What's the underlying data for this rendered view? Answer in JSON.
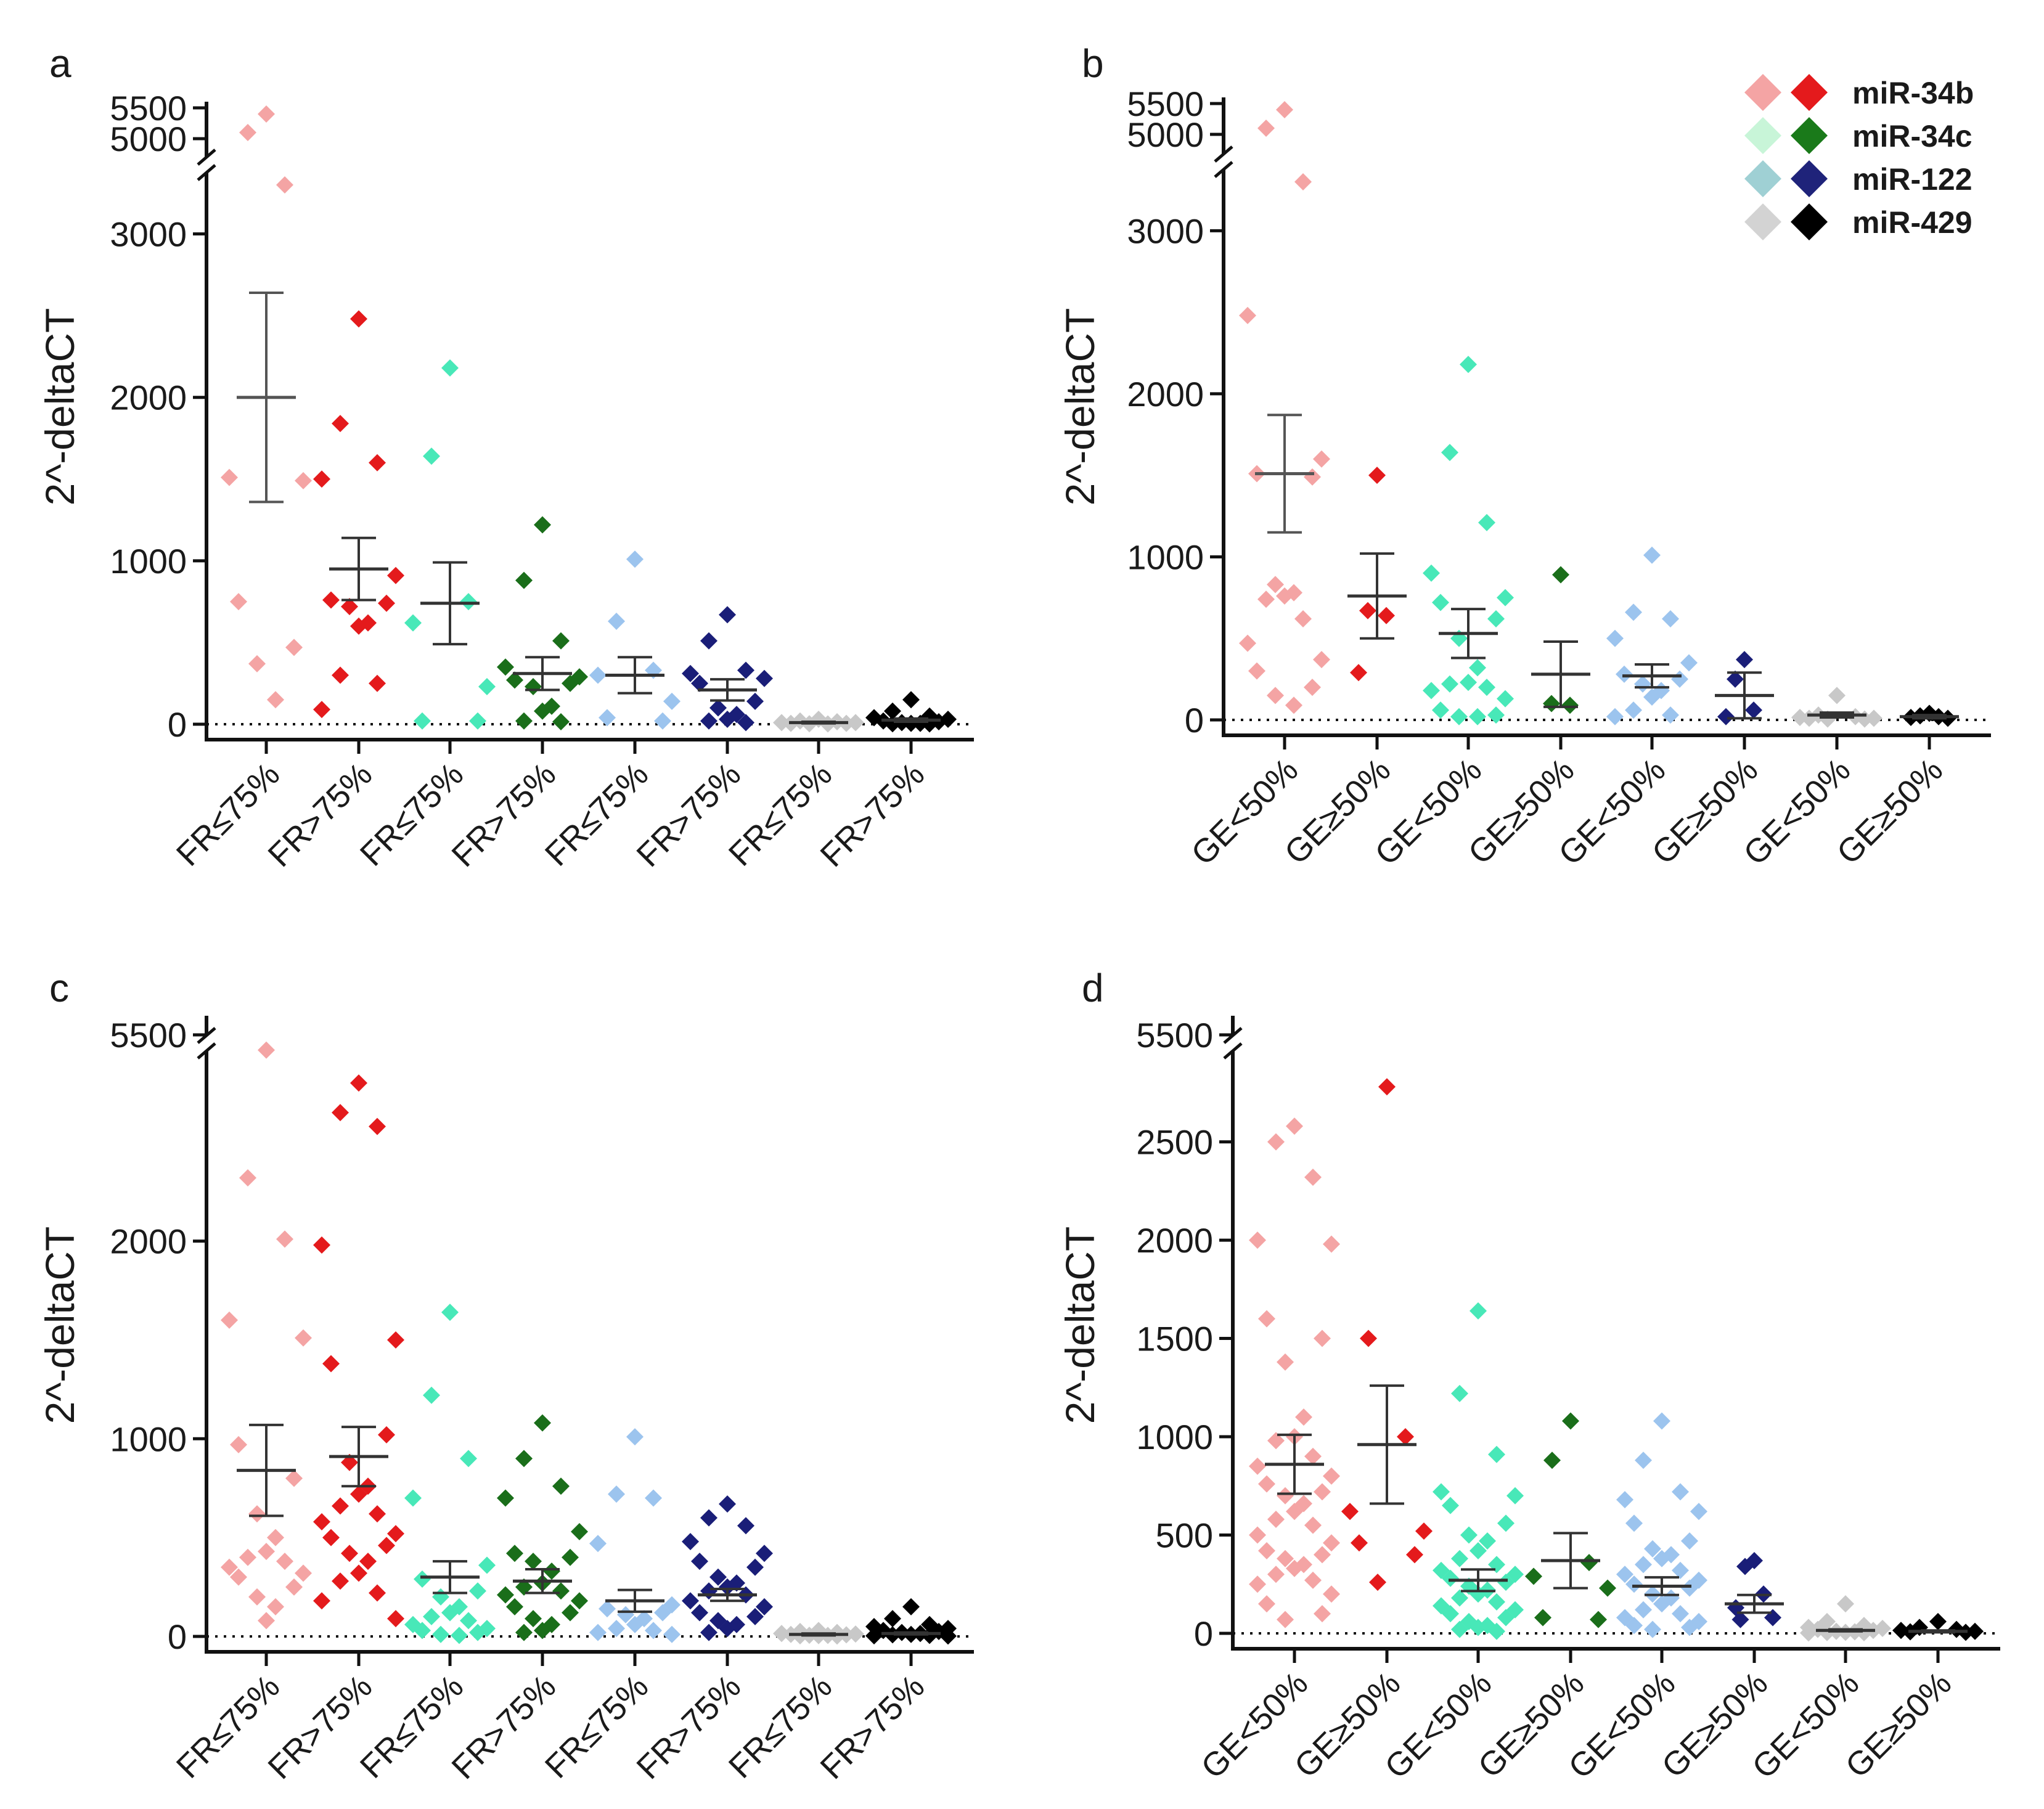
{
  "legend": [
    {
      "label": "miR-34b",
      "light": "#f4a4a4",
      "dark": "#e41a1c",
      "text_color": "#b22222"
    },
    {
      "label": "miR-34c",
      "light": "#c8f5d8",
      "dark": "#1a7a1a",
      "text_color": "#2e8b2e"
    },
    {
      "label": "miR-122",
      "light": "#9fd0d4",
      "dark": "#1f237a",
      "text_color": "#1f78b4"
    },
    {
      "label": "miR-429",
      "light": "#d3d3d3",
      "dark": "#000000",
      "text_color": "#707070"
    }
  ],
  "group_colors": [
    "#f4a4a4",
    "#e41a1c",
    "#48e8b8",
    "#1a6e1a",
    "#9cc4ee",
    "#1a1e78",
    "#c8c8c8",
    "#000000"
  ],
  "chart_data": [
    {
      "panel_label": "a",
      "type": "scatter",
      "ylabel": "2^-deltaCT",
      "categories": [
        "FR≤75%",
        "FR>75%",
        "FR≤75%",
        "FR>75%",
        "FR≤75%",
        "FR>75%",
        "FR≤75%",
        "FR>75%"
      ],
      "y_segments": [
        [
          0,
          3300
        ],
        [
          4800,
          5600
        ]
      ],
      "yticks": [
        0,
        1000,
        2000,
        3000,
        5000,
        5500
      ],
      "ytick_labels": [
        "0",
        "1000",
        "2000",
        "3000",
        "5000",
        "5500"
      ],
      "means": [
        2000,
        950,
        740,
        310,
        300,
        210,
        10,
        25
      ],
      "sems": [
        640,
        190,
        250,
        100,
        110,
        65,
        5,
        10
      ],
      "points": [
        [
          5400,
          5100,
          3300,
          1510,
          1490,
          750,
          470,
          370,
          150
        ],
        [
          2480,
          1840,
          1600,
          1500,
          910,
          760,
          740,
          720,
          620,
          600,
          300,
          250,
          90
        ],
        [
          2180,
          1640,
          750,
          620,
          230,
          20,
          20
        ],
        [
          1220,
          880,
          510,
          350,
          290,
          270,
          250,
          230,
          110,
          80,
          20,
          15
        ],
        [
          1010,
          630,
          330,
          300,
          140,
          40,
          20
        ],
        [
          670,
          510,
          330,
          310,
          280,
          250,
          140,
          100,
          60,
          30,
          20,
          10
        ],
        [
          30,
          20,
          15,
          10,
          10,
          5,
          5,
          3,
          2
        ],
        [
          150,
          80,
          50,
          40,
          30,
          20,
          15,
          10,
          5,
          5,
          3,
          2
        ]
      ]
    },
    {
      "panel_label": "b",
      "type": "scatter",
      "ylabel": "2^-deltaCT",
      "categories": [
        "GE<50%",
        "GE≥50%",
        "GE<50%",
        "GE≥50%",
        "GE<50%",
        "GE≥50%",
        "GE<50%",
        "GE≥50%"
      ],
      "y_segments": [
        [
          0,
          3300
        ],
        [
          4800,
          5600
        ]
      ],
      "yticks": [
        0,
        1000,
        2000,
        3000,
        5000,
        5500
      ],
      "ytick_labels": [
        "0",
        "1000",
        "2000",
        "3000",
        "5000",
        "5500"
      ],
      "means": [
        1510,
        760,
        530,
        280,
        270,
        150,
        30,
        20
      ],
      "sems": [
        360,
        260,
        150,
        200,
        70,
        140,
        15,
        10
      ],
      "points": [
        [
          5400,
          5100,
          3300,
          2480,
          1600,
          1510,
          1490,
          830,
          780,
          760,
          740,
          620,
          470,
          370,
          300,
          200,
          150,
          90
        ],
        [
          1500,
          670,
          640,
          290
        ],
        [
          2180,
          1640,
          1210,
          900,
          750,
          720,
          620,
          500,
          320,
          230,
          220,
          200,
          180,
          130,
          60,
          30,
          20,
          20
        ],
        [
          890,
          100,
          90
        ],
        [
          1010,
          660,
          620,
          500,
          350,
          280,
          250,
          220,
          180,
          140,
          60,
          30,
          20
        ],
        [
          370,
          250,
          60,
          20
        ],
        [
          150,
          30,
          20,
          15,
          10,
          10,
          5,
          5
        ],
        [
          40,
          25,
          20,
          15,
          10
        ]
      ]
    },
    {
      "panel_label": "c",
      "type": "scatter",
      "ylabel": "2^-deltaCT",
      "categories": [
        "FR≤75%",
        "FR>75%",
        "FR≤75%",
        "FR>75%",
        "FR≤75%",
        "FR>75%",
        "FR≤75%",
        "FR>75%"
      ],
      "y_segments": [
        [
          0,
          2900
        ],
        [
          5400,
          5600
        ]
      ],
      "yticks": [
        0,
        1000,
        2000,
        5500
      ],
      "ytick_labels": [
        "0",
        "1000",
        "2000",
        "5500"
      ],
      "means": [
        840,
        910,
        300,
        280,
        180,
        210,
        10,
        15
      ],
      "sems": [
        230,
        150,
        80,
        60,
        55,
        30,
        5,
        5
      ],
      "points": [
        [
          5420,
          2320,
          2010,
          1600,
          1510,
          970,
          800,
          620,
          500,
          430,
          400,
          380,
          350,
          320,
          300,
          250,
          200,
          150,
          80
        ],
        [
          2800,
          2650,
          2580,
          1980,
          1500,
          1380,
          1020,
          880,
          760,
          720,
          660,
          620,
          580,
          520,
          500,
          460,
          420,
          380,
          320,
          280,
          220,
          180,
          90
        ],
        [
          1640,
          1220,
          900,
          700,
          360,
          290,
          230,
          200,
          150,
          120,
          100,
          80,
          60,
          40,
          30,
          20,
          10,
          5
        ],
        [
          1080,
          900,
          760,
          700,
          530,
          420,
          400,
          380,
          330,
          270,
          250,
          230,
          210,
          180,
          150,
          120,
          90,
          60,
          30,
          20
        ],
        [
          1010,
          720,
          700,
          470,
          160,
          140,
          120,
          110,
          90,
          60,
          40,
          30,
          20,
          10
        ],
        [
          670,
          600,
          560,
          480,
          420,
          380,
          350,
          300,
          270,
          250,
          230,
          210,
          180,
          150,
          120,
          100,
          80,
          60,
          40,
          20
        ],
        [
          30,
          25,
          20,
          15,
          12,
          10,
          8,
          6,
          5,
          4,
          3,
          2
        ],
        [
          150,
          90,
          60,
          50,
          40,
          30,
          25,
          20,
          15,
          10,
          8,
          5,
          3,
          2
        ]
      ]
    },
    {
      "panel_label": "d",
      "type": "scatter",
      "ylabel": "2^-deltaCT",
      "categories": [
        "GE<50%",
        "GE≥50%",
        "GE<50%",
        "GE≥50%",
        "GE<50%",
        "GE≥50%",
        "GE<50%",
        "GE≥50%"
      ],
      "y_segments": [
        [
          0,
          2900
        ],
        [
          5400,
          5600
        ]
      ],
      "yticks": [
        0,
        500,
        1000,
        1500,
        2000,
        2500,
        5500
      ],
      "ytick_labels": [
        "0",
        "500",
        "1000",
        "1500",
        "2000",
        "2500",
        "5500"
      ],
      "means": [
        860,
        960,
        270,
        370,
        240,
        150,
        15,
        10
      ],
      "sems": [
        150,
        300,
        55,
        140,
        45,
        45,
        5,
        5
      ],
      "points": [
        [
          2580,
          2500,
          2320,
          2000,
          1980,
          1600,
          1500,
          1380,
          1100,
          1000,
          980,
          900,
          850,
          800,
          760,
          720,
          700,
          660,
          620,
          580,
          550,
          500,
          460,
          420,
          400,
          380,
          350,
          330,
          300,
          270,
          250,
          200,
          150,
          100,
          70
        ],
        [
          2780,
          1500,
          1000,
          620,
          520,
          460,
          400,
          260
        ],
        [
          1640,
          1220,
          910,
          720,
          700,
          650,
          560,
          500,
          470,
          420,
          380,
          350,
          320,
          300,
          280,
          260,
          240,
          220,
          200,
          180,
          160,
          140,
          120,
          100,
          80,
          60,
          40,
          30,
          20,
          10
        ],
        [
          1080,
          880,
          360,
          290,
          230,
          80,
          70
        ],
        [
          1080,
          880,
          720,
          680,
          620,
          560,
          470,
          430,
          400,
          380,
          350,
          320,
          300,
          270,
          250,
          230,
          200,
          180,
          150,
          120,
          100,
          80,
          60,
          40,
          30,
          20
        ],
        [
          370,
          340,
          200,
          130,
          80,
          70
        ],
        [
          150,
          60,
          40,
          30,
          25,
          20,
          15,
          10,
          8,
          5,
          4,
          3,
          2
        ],
        [
          60,
          30,
          20,
          15,
          10,
          8,
          5
        ]
      ]
    }
  ]
}
